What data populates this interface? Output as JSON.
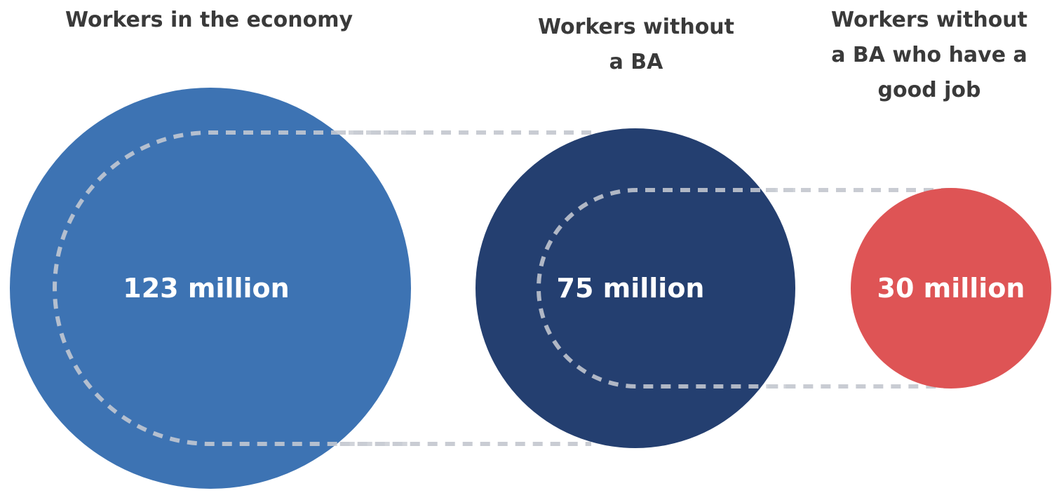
{
  "colors": {
    "total": "#3d73b3",
    "no_ba": "#243f70",
    "good_job": "#de5455",
    "connector": "#c9ccd3",
    "heading_text": "#3a3a3a",
    "bubble_text": "#ffffff"
  },
  "stages": [
    {
      "heading_lines": [
        "Workers in the economy"
      ],
      "value_label": "123 million",
      "value_millions": 123
    },
    {
      "heading_lines": [
        "Workers without",
        "a BA"
      ],
      "value_label": "75 million",
      "value_millions": 75
    },
    {
      "heading_lines": [
        "Workers without",
        "a BA who have a",
        "good job"
      ],
      "value_label": "30 million",
      "value_millions": 30
    }
  ]
}
